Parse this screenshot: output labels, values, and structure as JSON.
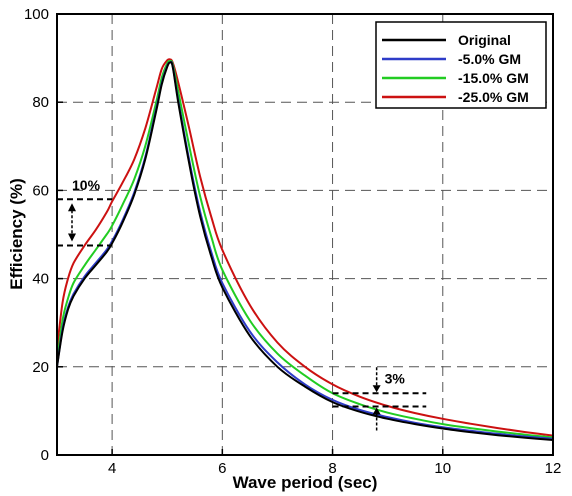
{
  "chart_data": {
    "type": "line",
    "xlabel": "Wave period (sec)",
    "ylabel": "Efficiency (%)",
    "xlim": [
      3,
      12
    ],
    "ylim": [
      0,
      100
    ],
    "xticks": [
      "4",
      "6",
      "8",
      "10",
      "12"
    ],
    "yticks": [
      "0",
      "20",
      "40",
      "60",
      "80",
      "100"
    ],
    "grid": "dashed",
    "legend_position": "top-right",
    "x": [
      3.0,
      3.1,
      3.2,
      3.3,
      3.5,
      3.7,
      3.9,
      4.0,
      4.2,
      4.4,
      4.6,
      4.8,
      4.9,
      5.0,
      5.05,
      5.1,
      5.2,
      5.4,
      5.6,
      5.8,
      6.0,
      6.5,
      7.0,
      7.5,
      8.0,
      8.5,
      9.0,
      9.5,
      10.0,
      10.5,
      11.0,
      11.5,
      12.0
    ],
    "series": [
      {
        "name": "Original",
        "color": "#000000",
        "values": [
          20,
          28,
          33,
          36,
          40,
          43,
          46,
          48,
          53,
          59,
          67,
          78,
          84,
          88,
          89,
          88,
          80,
          66,
          54,
          45,
          38,
          27,
          20,
          15.5,
          12,
          9.8,
          8.2,
          7.0,
          6.0,
          5.2,
          4.5,
          3.9,
          3.4
        ]
      },
      {
        "name": "-5.0% GM",
        "color": "#2e3cc8",
        "values": [
          20,
          28.5,
          33.5,
          36.5,
          40.5,
          43.5,
          46.5,
          48.5,
          53.5,
          59.5,
          67.5,
          78.5,
          84.3,
          88.2,
          89,
          88.2,
          80.5,
          66.8,
          55,
          46,
          39,
          28,
          21,
          16,
          12.5,
          10.2,
          8.6,
          7.3,
          6.3,
          5.5,
          4.8,
          4.2,
          3.7
        ]
      },
      {
        "name": "-15.0% GM",
        "color": "#22cc22",
        "values": [
          21,
          30.5,
          35.5,
          39,
          43,
          46.5,
          50,
          52,
          57,
          62.5,
          70,
          80,
          85.5,
          88.8,
          89.3,
          88.6,
          82.5,
          70,
          58.5,
          49.5,
          42,
          30.5,
          23,
          18,
          14,
          11.5,
          9.6,
          8.2,
          7.0,
          6.1,
          5.3,
          4.6,
          4.0
        ]
      },
      {
        "name": "-25.0% GM",
        "color": "#cc1111",
        "values": [
          24,
          34.5,
          40,
          43.5,
          47.5,
          51,
          55,
          57.5,
          62,
          67,
          74,
          83,
          87.5,
          89.5,
          89.7,
          89,
          84.5,
          74,
          63,
          54,
          46.5,
          34,
          25.5,
          20,
          16,
          13.2,
          11.1,
          9.5,
          8.2,
          7.1,
          6.1,
          5.2,
          4.4
        ]
      }
    ],
    "annotations": [
      {
        "text": "10%",
        "x": 3.95,
        "y_from": 47.5,
        "y_to": 58
      },
      {
        "text": "3%",
        "x": 8.8,
        "y_from": 11,
        "y_to": 14
      }
    ]
  }
}
